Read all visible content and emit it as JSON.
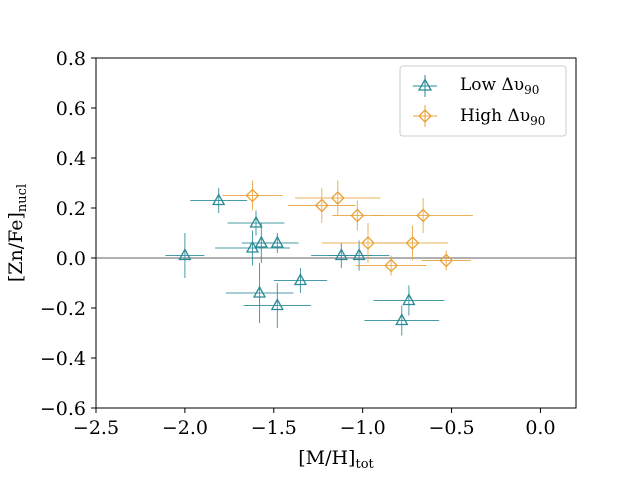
{
  "chart_data": {
    "type": "scatter",
    "xlabel": "[M/H]",
    "xlabel_sub": "tot",
    "ylabel": "[Zn/Fe]",
    "ylabel_sub": "nucl",
    "xlim": [
      -2.5,
      0.2
    ],
    "ylim": [
      -0.6,
      0.8
    ],
    "x_ticks": [
      -2.5,
      -2.0,
      -1.5,
      -1.0,
      -0.5,
      0.0
    ],
    "x_tick_labels": [
      "−2.5",
      "−2.0",
      "−1.5",
      "−1.0",
      "−0.5",
      "0.0"
    ],
    "y_ticks": [
      -0.6,
      -0.4,
      -0.2,
      0.0,
      0.2,
      0.4,
      0.6,
      0.8
    ],
    "y_tick_labels": [
      "−0.6",
      "−0.4",
      "−0.2",
      "0.0",
      "0.2",
      "0.4",
      "0.6",
      "0.8"
    ],
    "reference_line": {
      "y": 0.0,
      "color": "#808080"
    },
    "legend_position": "top-right",
    "series": [
      {
        "name": "Low Δυ",
        "name_sub": "90",
        "marker": "triangle",
        "color": "#2a8a97",
        "points": [
          {
            "x": -2.0,
            "y": 0.01,
            "xerr": 0.11,
            "yerr": 0.09
          },
          {
            "x": -1.81,
            "y": 0.23,
            "xerr": 0.16,
            "yerr": 0.05
          },
          {
            "x": -1.6,
            "y": 0.14,
            "xerr": 0.16,
            "yerr": 0.05
          },
          {
            "x": -1.62,
            "y": 0.04,
            "xerr": 0.21,
            "yerr": 0.07
          },
          {
            "x": -1.57,
            "y": 0.06,
            "xerr": 0.11,
            "yerr": 0.08
          },
          {
            "x": -1.48,
            "y": 0.06,
            "xerr": 0.12,
            "yerr": 0.04
          },
          {
            "x": -1.58,
            "y": -0.14,
            "xerr": 0.19,
            "yerr": 0.12
          },
          {
            "x": -1.48,
            "y": -0.19,
            "xerr": 0.19,
            "yerr": 0.09
          },
          {
            "x": -1.35,
            "y": -0.09,
            "xerr": 0.15,
            "yerr": 0.05
          },
          {
            "x": -1.12,
            "y": 0.01,
            "xerr": 0.17,
            "yerr": 0.05
          },
          {
            "x": -1.02,
            "y": 0.01,
            "xerr": 0.17,
            "yerr": 0.06
          },
          {
            "x": -0.78,
            "y": -0.25,
            "xerr": 0.21,
            "yerr": 0.06
          },
          {
            "x": -0.74,
            "y": -0.17,
            "xerr": 0.2,
            "yerr": 0.06
          }
        ]
      },
      {
        "name": "High Δυ",
        "name_sub": "90",
        "marker": "diamond",
        "color": "#e8a33a",
        "points": [
          {
            "x": -1.62,
            "y": 0.25,
            "xerr": 0.17,
            "yerr": 0.06
          },
          {
            "x": -1.23,
            "y": 0.21,
            "xerr": 0.19,
            "yerr": 0.07
          },
          {
            "x": -1.14,
            "y": 0.24,
            "xerr": 0.24,
            "yerr": 0.07
          },
          {
            "x": -1.03,
            "y": 0.17,
            "xerr": 0.14,
            "yerr": 0.06
          },
          {
            "x": -0.97,
            "y": 0.06,
            "xerr": 0.26,
            "yerr": 0.08
          },
          {
            "x": -0.84,
            "y": -0.03,
            "xerr": 0.2,
            "yerr": 0.04
          },
          {
            "x": -0.72,
            "y": 0.06,
            "xerr": 0.2,
            "yerr": 0.07
          },
          {
            "x": -0.66,
            "y": 0.17,
            "xerr": 0.28,
            "yerr": 0.07
          },
          {
            "x": -0.53,
            "y": -0.01,
            "xerr": 0.14,
            "yerr": 0.04
          }
        ]
      }
    ]
  }
}
